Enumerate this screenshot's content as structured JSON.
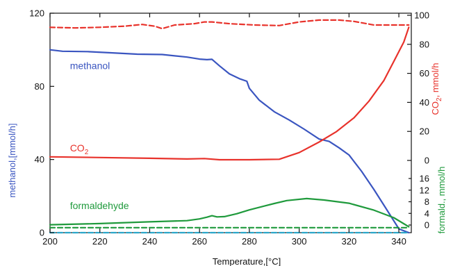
{
  "chart_data": {
    "type": "line",
    "xlabel": "Temperature,[°C]",
    "xlim": [
      200,
      345
    ],
    "x_ticks": [
      200,
      220,
      240,
      260,
      280,
      300,
      320,
      340
    ],
    "axes": {
      "left": {
        "label": "methanol,[mmol/h]",
        "color": "#3a55c0",
        "ylim": [
          0,
          120
        ],
        "ticks": [
          0,
          40,
          80,
          120
        ]
      },
      "right_co2": {
        "label": "CO2, mmol/h",
        "color": "#e8322b",
        "ylim": [
          0,
          100
        ],
        "ticks": [
          0,
          20,
          40,
          60,
          80,
          100
        ]
      },
      "right_formaldehyde": {
        "label": "formald., mmol/h",
        "color": "#1f9a3c",
        "ylim": [
          0,
          16
        ],
        "ticks": [
          0,
          4,
          8,
          12,
          16
        ]
      }
    },
    "series": [
      {
        "name": "methanol",
        "axis": "left",
        "color": "#3a55c0",
        "style": "solid",
        "x": [
          200,
          205,
          215,
          225,
          235,
          245,
          255,
          260,
          263,
          265,
          268,
          272,
          276,
          279,
          280,
          284,
          290,
          296,
          302,
          308,
          312,
          316,
          320,
          325,
          330,
          335,
          340,
          343,
          344
        ],
        "y": [
          100,
          99.2,
          99,
          98.3,
          97.6,
          97.4,
          96,
          94.9,
          94.6,
          94.8,
          91.2,
          86.8,
          84.2,
          82.8,
          78.9,
          72.4,
          66.1,
          61.6,
          56.6,
          51.2,
          49.9,
          46.4,
          42.5,
          33.6,
          23.6,
          12.9,
          2.1,
          0.5,
          0
        ]
      },
      {
        "name": "CO2",
        "axis": "right_co2",
        "color": "#e8322b",
        "style": "solid",
        "x": [
          200,
          220,
          240,
          255,
          262,
          268,
          280,
          292,
          300,
          308,
          315,
          322,
          328,
          334,
          338,
          342,
          344
        ],
        "y": [
          2.5,
          2,
          1.5,
          1,
          1.3,
          0.5,
          0.5,
          0.8,
          5.4,
          12.7,
          19.9,
          29.4,
          40.8,
          55.1,
          68.3,
          81.6,
          91.7
        ]
      },
      {
        "name": "CO2 (dashed)",
        "axis": "right_co2",
        "color": "#e8322b",
        "style": "dashed",
        "x": [
          200,
          210,
          220,
          230,
          237,
          242,
          245,
          250,
          258,
          262,
          265,
          272,
          282,
          292,
          300,
          308,
          316,
          322,
          330,
          338,
          344
        ],
        "y": [
          91.7,
          91.3,
          91.7,
          92.5,
          93.7,
          92.5,
          90.8,
          93.3,
          94.2,
          95.4,
          95.4,
          94.2,
          93.3,
          92.9,
          95.4,
          96.7,
          96.7,
          95.8,
          93.3,
          93.3,
          93.3
        ]
      },
      {
        "name": "formaldehyde",
        "axis": "right_formaldehyde",
        "color": "#1f9a3c",
        "style": "solid",
        "x": [
          200,
          220,
          240,
          255,
          260,
          263,
          265,
          267,
          270,
          275,
          280,
          290,
          295,
          303,
          310,
          320,
          330,
          338,
          344
        ],
        "y": [
          0.1,
          0.5,
          1.1,
          1.5,
          2.1,
          2.7,
          3.2,
          2.8,
          2.9,
          3.9,
          5.2,
          7.4,
          8.4,
          9.1,
          8.6,
          7.5,
          5.1,
          2.5,
          -0.6
        ]
      },
      {
        "name": "formaldehyde (dashed)",
        "axis": "right_formaldehyde",
        "color": "#1f9a3c",
        "style": "dashed",
        "x": [
          200,
          344
        ],
        "y": [
          -0.9,
          -0.9
        ]
      },
      {
        "name": "baseline (dashed)",
        "axis": "left",
        "color": "#2aa6c9",
        "style": "dashed",
        "x": [
          200,
          344
        ],
        "y": [
          0,
          0
        ]
      }
    ],
    "annotations": [
      {
        "text": "methanol",
        "color": "#3a55c0",
        "x": 208,
        "y": 89.5,
        "axis": "left"
      },
      {
        "text": "CO2",
        "color": "#e8322b",
        "x": 208,
        "y": 44.5,
        "axis": "left"
      },
      {
        "text": "formaldehyde",
        "color": "#1f9a3c",
        "x": 208,
        "y": 13,
        "axis": "left"
      }
    ]
  }
}
